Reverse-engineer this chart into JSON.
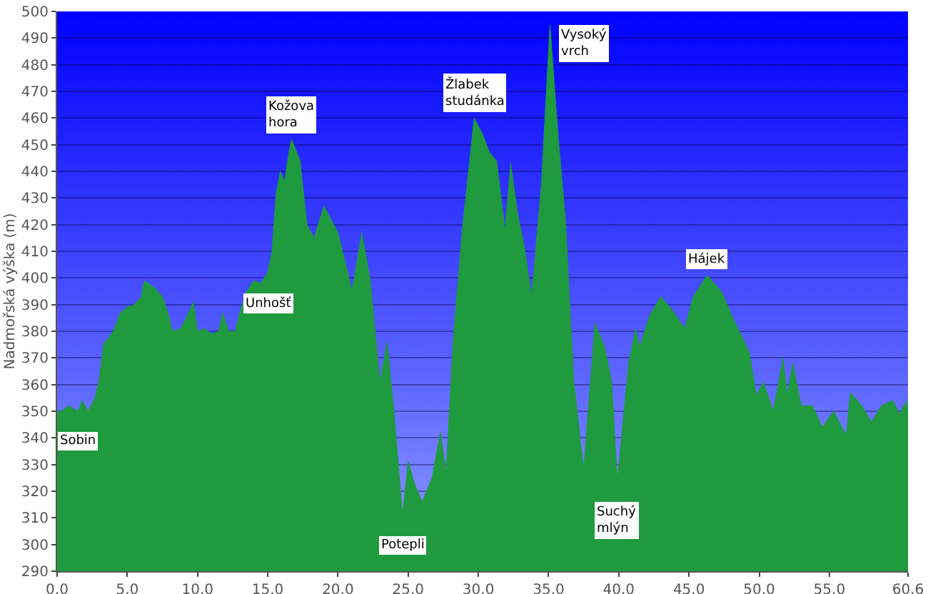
{
  "chart_data": {
    "type": "area",
    "ylabel": "Nadmořská výška (m)",
    "xlim": [
      0,
      60.6
    ],
    "ylim": [
      290,
      500
    ],
    "xticks": [
      {
        "value": 0,
        "label": "0.0"
      },
      {
        "value": 5,
        "label": "5.0"
      },
      {
        "value": 10,
        "label": "10.0"
      },
      {
        "value": 15,
        "label": "15.0"
      },
      {
        "value": 20,
        "label": "20.0"
      },
      {
        "value": 25,
        "label": "25.0"
      },
      {
        "value": 30,
        "label": "30.0"
      },
      {
        "value": 35,
        "label": "35.0"
      },
      {
        "value": 40,
        "label": "40.0"
      },
      {
        "value": 45,
        "label": "45.0"
      },
      {
        "value": 50,
        "label": "50.0"
      },
      {
        "value": 55,
        "label": "55.0"
      },
      {
        "value": 60.6,
        "label": "60.6"
      }
    ],
    "yticks": [
      290,
      300,
      310,
      320,
      330,
      340,
      350,
      360,
      370,
      380,
      390,
      400,
      410,
      420,
      430,
      440,
      450,
      460,
      470,
      480,
      490,
      500
    ],
    "grid": "y",
    "series": [
      {
        "color": "#1f9a3f",
        "x": [
          0,
          0.3,
          0.8,
          1.5,
          1.8,
          2.2,
          2.7,
          3.0,
          3.3,
          4.0,
          4.5,
          5.0,
          5.5,
          6.0,
          6.2,
          7.0,
          7.5,
          8.0,
          8.2,
          8.8,
          9.3,
          9.7,
          10.0,
          10.5,
          11.0,
          11.5,
          11.8,
          12.2,
          12.7,
          13.0,
          13.5,
          14.0,
          14.5,
          15.0,
          15.3,
          15.6,
          15.9,
          16.2,
          16.5,
          16.7,
          17.3,
          17.8,
          18.3,
          19.0,
          20.0,
          20.7,
          21.0,
          21.7,
          22.3,
          23.0,
          23.5,
          24.0,
          24.6,
          25.0,
          25.5,
          26.0,
          26.7,
          27.3,
          27.7,
          28.2,
          28.8,
          29.7,
          30.3,
          30.8,
          31.3,
          31.9,
          32.3,
          32.8,
          33.3,
          33.8,
          34.5,
          35.1,
          35.7,
          36.2,
          36.8,
          37.5,
          38.3,
          39.0,
          39.5,
          39.9,
          40.7,
          41.2,
          41.5,
          42.2,
          43.0,
          43.8,
          44.7,
          45.3,
          46.3,
          47.3,
          48.3,
          49.3,
          49.8,
          50.3,
          51.0,
          51.7,
          52.0,
          52.4,
          53.0,
          53.8,
          54.5,
          55.3,
          56.2,
          56.5,
          57.3,
          58.0,
          58.7,
          59.5,
          60.0,
          60.5,
          60.6
        ],
        "values": [
          350,
          350,
          352,
          350,
          354,
          350,
          355,
          362,
          375,
          380,
          387,
          389,
          390,
          393,
          399,
          396,
          393,
          385,
          380,
          381,
          386,
          391,
          380,
          381,
          379,
          380,
          387,
          380,
          380,
          387,
          395,
          399,
          398,
          402,
          410,
          432,
          440,
          436,
          447,
          452,
          444,
          420,
          415,
          427,
          417,
          402,
          395,
          417,
          399,
          361,
          376,
          349,
          311,
          331,
          322,
          316,
          325,
          342,
          327,
          376,
          415,
          460,
          454,
          447,
          444,
          418,
          443,
          424,
          411,
          393,
          436,
          495,
          452,
          422,
          361,
          328,
          383,
          374,
          361,
          324,
          368,
          381,
          374,
          386,
          393,
          388,
          381,
          393,
          401,
          395,
          383,
          372,
          356,
          361,
          350,
          370,
          356,
          368,
          352,
          352,
          344,
          350,
          341,
          357,
          352,
          346,
          352,
          354,
          349,
          354,
          350
        ]
      }
    ],
    "annotations": [
      {
        "text": "Sobin",
        "x": 0,
        "y": 350
      },
      {
        "text": "Kožova\nhora",
        "x": 16.7,
        "y": 452
      },
      {
        "text": "Unhošť",
        "x": 15.0,
        "y": 402
      },
      {
        "text": "Potepli",
        "x": 24.6,
        "y": 311
      },
      {
        "text": "Žlabek\nstudánka",
        "x": 29.7,
        "y": 460
      },
      {
        "text": "Vysoký\nvrch",
        "x": 35.1,
        "y": 495
      },
      {
        "text": "Suchý\nmlýn",
        "x": 39.9,
        "y": 324
      },
      {
        "text": "Hájek",
        "x": 46.3,
        "y": 401
      }
    ]
  }
}
